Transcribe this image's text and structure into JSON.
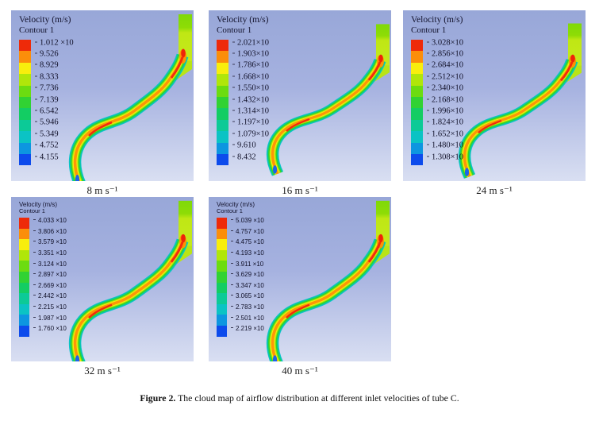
{
  "figure": {
    "caption_label": "Figure 2.",
    "caption_text": "The cloud map of airflow distribution at different inlet velocities of tube C."
  },
  "colors": {
    "band_colors": [
      "#ee2a09",
      "#fb8e0a",
      "#f8ee0d",
      "#b0e60a",
      "#6cdc10",
      "#31d233",
      "#13cd63",
      "#0cca97",
      "#0bc3c4",
      "#0d96e0",
      "#0d4bec"
    ],
    "background_top": "#98a7d8",
    "background_mid": "#a6b2e0",
    "background_bottom": "#d9dff2",
    "legend_text": "#14142e"
  },
  "panels": [
    {
      "velocity_label": "8 m s⁻¹",
      "legend_title": "Velocity (m/s)",
      "legend_subtitle": "Contour 1",
      "levels": [
        "1.012 ×10",
        "9.526",
        "8.929",
        "8.333",
        "7.736",
        "7.139",
        "6.542",
        "5.946",
        "5.349",
        "4.752",
        "4.155"
      ]
    },
    {
      "velocity_label": "16 m s⁻¹",
      "legend_title": "Velocity (m/s)",
      "legend_subtitle": "Contour 1",
      "levels": [
        "2.021×10",
        "1.903×10",
        "1.786×10",
        "1.668×10",
        "1.550×10",
        "1.432×10",
        "1.314×10",
        "1.197×10",
        "1.079×10",
        "9.610",
        "8.432"
      ]
    },
    {
      "velocity_label": "24 m s⁻¹",
      "legend_title": "Velocity (m/s)",
      "legend_subtitle": "Contour 1",
      "levels": [
        "3.028×10",
        "2.856×10",
        "2.684×10",
        "2.512×10",
        "2.340×10",
        "2.168×10",
        "1.996×10",
        "1.824×10",
        "1.652×10",
        "1.480×10",
        "1.308×10"
      ]
    },
    {
      "velocity_label": "32 m s⁻¹",
      "legend_title": "Velocity (m/s)",
      "legend_subtitle": "Contour 1",
      "levels": [
        "4.033 ×10",
        "3.806 ×10",
        "3.579 ×10",
        "3.351 ×10",
        "3.124 ×10",
        "2.897 ×10",
        "2.669 ×10",
        "2.442 ×10",
        "2.215 ×10",
        "1.987 ×10",
        "1.760 ×10"
      ]
    },
    {
      "velocity_label": "40 m s⁻¹",
      "legend_title": "Velocity (m/s)",
      "legend_subtitle": "Contour 1",
      "levels": [
        "5.039 ×10",
        "4.757 ×10",
        "4.475 ×10",
        "4.193 ×10",
        "3.911 ×10",
        "3.629 ×10",
        "3.347 ×10",
        "3.065 ×10",
        "2.783 ×10",
        "2.501 ×10",
        "2.219 ×10"
      ]
    }
  ],
  "chart_data": [
    {
      "type": "heatmap",
      "subtype": "cfd-velocity-contour",
      "title": "Velocity (m/s) Contour 1",
      "inlet_velocity_label": "8 m s⁻¹",
      "inlet_velocity_m_s": 8,
      "contour_levels_m_s": [
        10.12,
        9.526,
        8.929,
        8.333,
        7.736,
        7.139,
        6.542,
        5.946,
        5.349,
        4.752,
        4.155
      ],
      "legend_position": "left"
    },
    {
      "type": "heatmap",
      "subtype": "cfd-velocity-contour",
      "title": "Velocity (m/s) Contour 1",
      "inlet_velocity_label": "16 m s⁻¹",
      "inlet_velocity_m_s": 16,
      "contour_levels_m_s": [
        20.21,
        19.03,
        17.86,
        16.68,
        15.5,
        14.32,
        13.14,
        11.97,
        10.79,
        9.61,
        8.432
      ],
      "legend_position": "left"
    },
    {
      "type": "heatmap",
      "subtype": "cfd-velocity-contour",
      "title": "Velocity (m/s) Contour 1",
      "inlet_velocity_label": "24 m s⁻¹",
      "inlet_velocity_m_s": 24,
      "contour_levels_m_s": [
        30.28,
        28.56,
        26.84,
        25.12,
        23.4,
        21.68,
        19.96,
        18.24,
        16.52,
        14.8,
        13.08
      ],
      "legend_position": "left"
    },
    {
      "type": "heatmap",
      "subtype": "cfd-velocity-contour",
      "title": "Velocity (m/s) Contour 1",
      "inlet_velocity_label": "32 m s⁻¹",
      "inlet_velocity_m_s": 32,
      "contour_levels_m_s": [
        40.33,
        38.06,
        35.79,
        33.51,
        31.24,
        28.97,
        26.69,
        24.42,
        22.15,
        19.87,
        17.6
      ],
      "legend_position": "left"
    },
    {
      "type": "heatmap",
      "subtype": "cfd-velocity-contour",
      "title": "Velocity (m/s) Contour 1",
      "inlet_velocity_label": "40 m s⁻¹",
      "inlet_velocity_m_s": 40,
      "contour_levels_m_s": [
        50.39,
        47.57,
        44.75,
        41.93,
        39.11,
        36.29,
        33.47,
        30.65,
        27.83,
        25.01,
        22.19
      ],
      "legend_position": "left"
    }
  ]
}
